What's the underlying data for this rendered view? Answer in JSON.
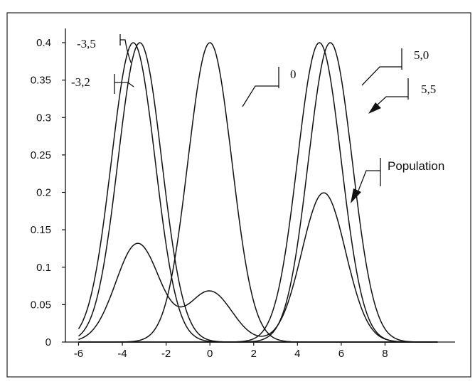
{
  "chart_data": {
    "type": "line",
    "title": "",
    "xlabel": "",
    "ylabel": "",
    "xlim": [
      -6.6,
      11.2
    ],
    "ylim": [
      0,
      0.4
    ],
    "x_ticks": [
      {
        "value": -6,
        "label": "-6"
      },
      {
        "value": -4,
        "label": "-4"
      },
      {
        "value": -2,
        "label": "-2"
      },
      {
        "value": 0,
        "label": "0"
      },
      {
        "value": 2,
        "label": "2"
      },
      {
        "value": 4,
        "label": "4"
      },
      {
        "value": 6,
        "label": "6"
      },
      {
        "value": 8,
        "label": "8"
      }
    ],
    "y_ticks": [
      {
        "value": 0,
        "label": "0"
      },
      {
        "value": 0.05,
        "label": "0.05"
      },
      {
        "value": 0.1,
        "label": "0.1"
      },
      {
        "value": 0.15,
        "label": "0.15"
      },
      {
        "value": 0.2,
        "label": "0.2"
      },
      {
        "value": 0.25,
        "label": "0.25"
      },
      {
        "value": 0.3,
        "label": "0.3"
      },
      {
        "value": 0.35,
        "label": "0.35"
      },
      {
        "value": 0.4,
        "label": "0.4"
      }
    ],
    "grid": false,
    "series": [
      {
        "label": "-3,5",
        "kind": "normal",
        "mean": -3.5,
        "sd": 1,
        "peak": 0.4
      },
      {
        "label": "-3,2",
        "kind": "normal",
        "mean": -3.2,
        "sd": 1,
        "peak": 0.4
      },
      {
        "label": "0",
        "kind": "normal",
        "mean": 0,
        "sd": 1,
        "peak": 0.4
      },
      {
        "label": "5,0",
        "kind": "normal",
        "mean": 5.0,
        "sd": 1,
        "peak": 0.4
      },
      {
        "label": "5,5",
        "kind": "normal",
        "mean": 5.5,
        "sd": 1,
        "peak": 0.4
      },
      {
        "label": "Population",
        "kind": "mixture",
        "components": [
          {
            "weight": 0.33,
            "mean": -3.3,
            "sd": 1
          },
          {
            "weight": 0.17,
            "mean": 0,
            "sd": 1
          },
          {
            "weight": 0.5,
            "mean": 5.2,
            "sd": 1
          }
        ]
      }
    ]
  }
}
